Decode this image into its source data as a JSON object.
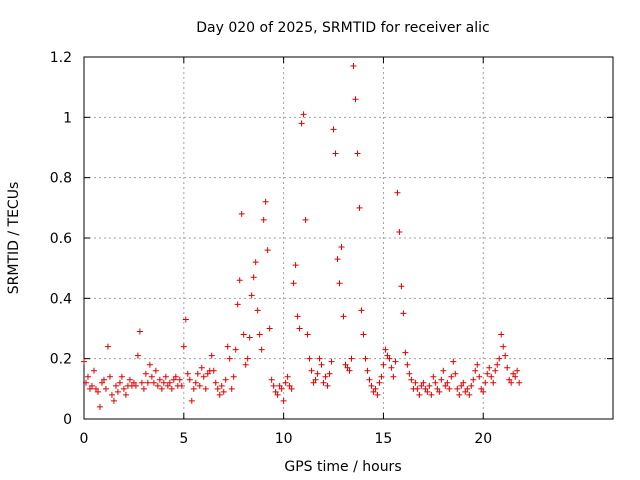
{
  "chart_data": {
    "type": "scatter",
    "title": "Day 020 of 2025, SRMTID for receiver alic",
    "xlabel": "GPS time / hours",
    "ylabel": "SRMTID / TECUs",
    "xlim": [
      0,
      26.5
    ],
    "ylim": [
      0,
      1.2
    ],
    "x_ticks": [
      0,
      5,
      10,
      15,
      20
    ],
    "x_tick_labels": [
      "0",
      "5",
      "10",
      "15",
      "20"
    ],
    "y_ticks": [
      0,
      0.2,
      0.4,
      0.6,
      0.8,
      1.0,
      1.2
    ],
    "y_tick_labels": [
      "0",
      "0.2",
      "0.4",
      "0.6",
      "0.8",
      "1",
      "1.2"
    ],
    "grid": true,
    "marker": "plus",
    "series": [
      {
        "name": "SRMTID",
        "color": "#e00000",
        "x_start": 0.0,
        "x_step": 0.1,
        "y": [
          0.19,
          0.12,
          0.14,
          0.1,
          0.11,
          0.16,
          0.1,
          0.09,
          0.04,
          0.12,
          0.13,
          0.1,
          0.24,
          0.14,
          0.08,
          0.06,
          0.11,
          0.09,
          0.12,
          0.14,
          0.1,
          0.08,
          0.11,
          0.13,
          0.11,
          0.12,
          0.11,
          0.21,
          0.29,
          0.12,
          0.1,
          0.15,
          0.12,
          0.18,
          0.14,
          0.12,
          0.16,
          0.11,
          0.13,
          0.1,
          0.12,
          0.14,
          0.11,
          0.12,
          0.1,
          0.13,
          0.14,
          0.11,
          0.13,
          0.11,
          0.24,
          0.33,
          0.15,
          0.13,
          0.06,
          0.1,
          0.12,
          0.15,
          0.11,
          0.17,
          0.14,
          0.1,
          0.15,
          0.16,
          0.21,
          0.16,
          0.12,
          0.1,
          0.08,
          0.11,
          0.09,
          0.13,
          0.24,
          0.2,
          0.1,
          0.14,
          0.23,
          0.38,
          0.46,
          0.68,
          0.28,
          0.18,
          0.2,
          0.27,
          0.41,
          0.47,
          0.52,
          0.36,
          0.28,
          0.23,
          0.66,
          0.72,
          0.56,
          0.3,
          0.13,
          0.11,
          0.09,
          0.08,
          0.11,
          0.1,
          0.06,
          0.12,
          0.14,
          0.11,
          0.1,
          0.45,
          0.51,
          0.34,
          0.3,
          0.98,
          1.01,
          0.66,
          0.28,
          0.2,
          0.16,
          0.12,
          0.13,
          0.15,
          0.2,
          0.18,
          0.12,
          0.14,
          0.11,
          0.15,
          0.19,
          0.96,
          0.88,
          0.53,
          0.45,
          0.57,
          0.34,
          0.18,
          0.17,
          0.16,
          0.2,
          1.17,
          1.06,
          0.88,
          0.7,
          0.36,
          0.28,
          0.2,
          0.16,
          0.13,
          0.11,
          0.09,
          0.1,
          0.08,
          0.12,
          0.14,
          0.18,
          0.23,
          0.21,
          0.2,
          0.17,
          0.14,
          0.19,
          0.75,
          0.62,
          0.44,
          0.35,
          0.22,
          0.18,
          0.15,
          0.13,
          0.1,
          0.12,
          0.1,
          0.08,
          0.11,
          0.12,
          0.1,
          0.09,
          0.11,
          0.08,
          0.14,
          0.12,
          0.1,
          0.09,
          0.13,
          0.16,
          0.11,
          0.12,
          0.1,
          0.14,
          0.19,
          0.15,
          0.1,
          0.08,
          0.11,
          0.12,
          0.09,
          0.1,
          0.08,
          0.11,
          0.13,
          0.16,
          0.18,
          0.14,
          0.1,
          0.09,
          0.12,
          0.15,
          0.17,
          0.14,
          0.12,
          0.16,
          0.18,
          0.2,
          0.28,
          0.24,
          0.21,
          0.17,
          0.13,
          0.12,
          0.15,
          0.14,
          0.16,
          0.12
        ]
      }
    ]
  }
}
